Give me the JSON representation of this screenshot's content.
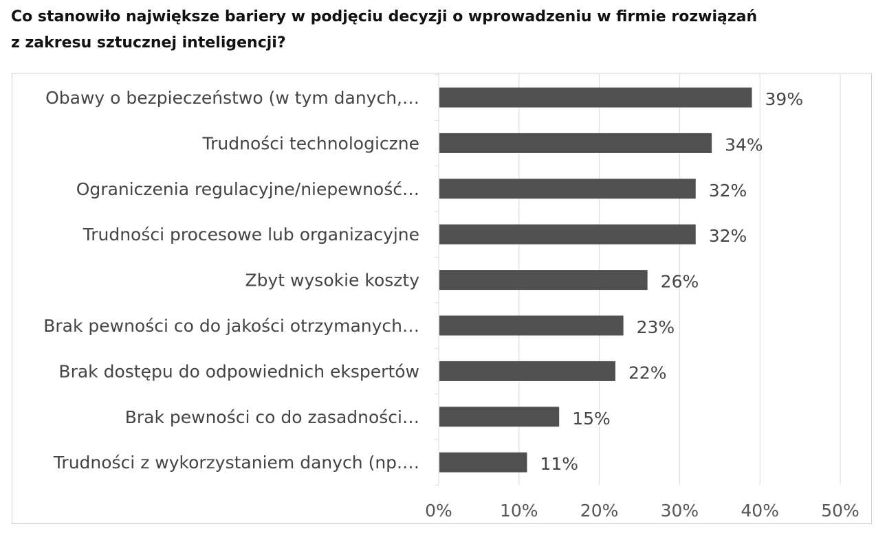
{
  "title": {
    "line1": "Co stanowiło największe bariery w podjęciu decyzji o wprowadzeniu w firmie rozwiązań",
    "line2": "z zakresu sztucznej inteligencji?"
  },
  "chart_data": {
    "type": "bar",
    "orientation": "horizontal",
    "categories": [
      "Obawy o bezpieczeństwo (w tym danych,…",
      "Trudności technologiczne",
      "Ograniczenia regulacyjne/niepewność…",
      "Trudności procesowe lub organizacyjne",
      "Zbyt wysokie koszty",
      "Brak pewności co do jakości otrzymanych…",
      "Brak dostępu do odpowiednich ekspertów",
      "Brak pewności co do zasadności…",
      "Trudności z wykorzystaniem danych (np.…"
    ],
    "values": [
      39,
      34,
      32,
      32,
      26,
      23,
      22,
      15,
      11
    ],
    "data_labels": [
      "39%",
      "34%",
      "32%",
      "32%",
      "26%",
      "23%",
      "22%",
      "15%",
      "11%"
    ],
    "xlim": [
      0,
      50
    ],
    "x_ticks": [
      0,
      10,
      20,
      30,
      40,
      50
    ],
    "x_tick_labels": [
      "0%",
      "10%",
      "20%",
      "30%",
      "40%",
      "50%"
    ],
    "grid": true,
    "legend": "none",
    "bar_color": "#505050",
    "grid_color": "#d9d9d9"
  }
}
